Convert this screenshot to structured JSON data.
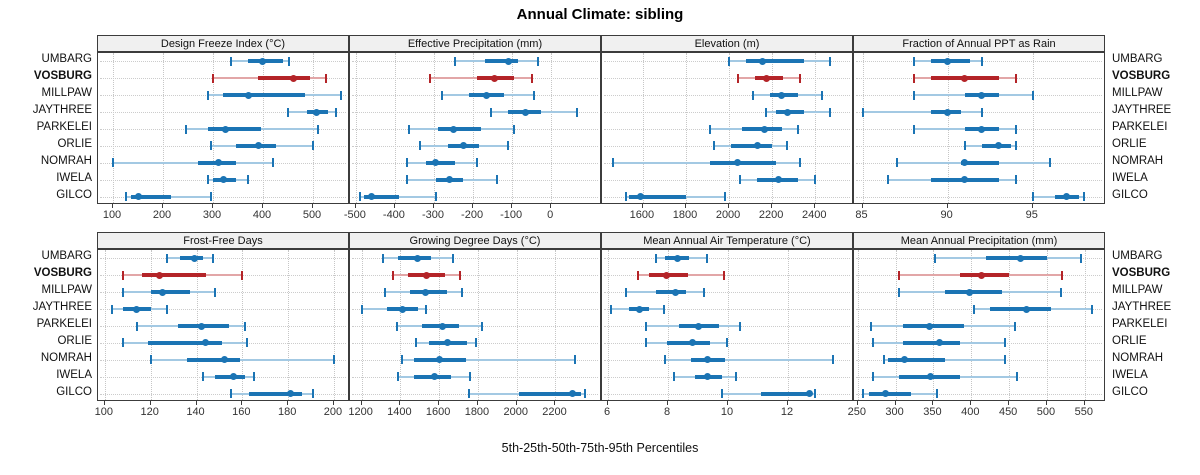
{
  "title": "Annual Climate: sibling",
  "caption": "5th-25th-50th-75th-95th Percentiles",
  "sites": [
    "UMBARG",
    "VOSBURG",
    "MILLPAW",
    "JAYTHREE",
    "PARKELEI",
    "ORLIE",
    "NOMRAH",
    "IWELA",
    "GILCO"
  ],
  "highlight_site": "VOSBURG",
  "percentile_labels": [
    "5th",
    "25th",
    "50th",
    "75th",
    "95th"
  ],
  "colors": {
    "blue": "#1b74b4",
    "blue_light": "#a3c9e3",
    "red": "#b42428",
    "red_light": "#e2a6a7",
    "grid": "#c6c6c6",
    "strip_bg": "#f0f0f0",
    "border": "#3c3c3c"
  },
  "chart_data": {
    "type": "dotplot-intervals",
    "layout": "2 rows x 4 cols",
    "legend_note": "each row shows 5th-25th-50th-75th-95th percentiles; VOSBURG highlighted red",
    "panels": [
      {
        "title": "Design Freeze Index (°C)",
        "xlim": [
          70,
          574
        ],
        "ticks": [
          100,
          200,
          300,
          400,
          500
        ],
        "values": {
          "UMBARG": [
            335,
            370,
            398,
            440,
            452
          ],
          "VOSBURG": [
            300,
            390,
            460,
            494,
            525
          ],
          "MILLPAW": [
            290,
            320,
            370,
            484,
            555
          ],
          "JAYTHREE": [
            450,
            487,
            507,
            530,
            545
          ],
          "PARKELEI": [
            245,
            290,
            325,
            395,
            510
          ],
          "ORLIE": [
            295,
            345,
            390,
            425,
            500
          ],
          "NOMRAH": [
            100,
            270,
            310,
            345,
            420
          ],
          "IWELA": [
            290,
            300,
            320,
            345,
            370
          ],
          "GILCO": [
            125,
            135,
            150,
            215,
            295
          ]
        }
      },
      {
        "title": "Effective Precipitation (mm)",
        "xlim": [
          -515,
          130
        ],
        "ticks": [
          -500,
          -400,
          -300,
          -200,
          -100,
          0
        ],
        "values": {
          "UMBARG": [
            -245,
            -170,
            -110,
            -85,
            -35
          ],
          "VOSBURG": [
            -310,
            -190,
            -145,
            -95,
            -50
          ],
          "MILLPAW": [
            -280,
            -210,
            -165,
            -120,
            -45
          ],
          "JAYTHREE": [
            -155,
            -110,
            -65,
            -25,
            65
          ],
          "PARKELEI": [
            -365,
            -290,
            -250,
            -180,
            -95
          ],
          "ORLIE": [
            -335,
            -265,
            -225,
            -185,
            -110
          ],
          "NOMRAH": [
            -370,
            -320,
            -295,
            -245,
            -190
          ],
          "IWELA": [
            -370,
            -295,
            -260,
            -225,
            -140
          ],
          "GILCO": [
            -490,
            -480,
            -460,
            -390,
            -295
          ]
        }
      },
      {
        "title": "Elevation (m)",
        "xlim": [
          1410,
          2580
        ],
        "ticks": [
          1600,
          1800,
          2000,
          2200,
          2400
        ],
        "values": {
          "UMBARG": [
            2000,
            2080,
            2155,
            2350,
            2470
          ],
          "VOSBURG": [
            2040,
            2120,
            2175,
            2250,
            2330
          ],
          "MILLPAW": [
            2110,
            2190,
            2245,
            2320,
            2430
          ],
          "JAYTHREE": [
            2170,
            2220,
            2270,
            2350,
            2470
          ],
          "PARKELEI": [
            1910,
            2060,
            2165,
            2245,
            2320
          ],
          "ORLIE": [
            1930,
            2010,
            2130,
            2200,
            2270
          ],
          "NOMRAH": [
            1460,
            1910,
            2040,
            2220,
            2330
          ],
          "IWELA": [
            2050,
            2130,
            2230,
            2320,
            2400
          ],
          "GILCO": [
            1520,
            1535,
            1590,
            1800,
            1980
          ]
        }
      },
      {
        "title": "Fraction of Annual PPT as Rain",
        "xlim": [
          84.5,
          99.3
        ],
        "ticks": [
          85,
          90,
          95
        ],
        "values": {
          "UMBARG": [
            88,
            89,
            90,
            91.3,
            92
          ],
          "VOSBURG": [
            88,
            89,
            91,
            93,
            94
          ],
          "MILLPAW": [
            88,
            91,
            92,
            93,
            95
          ],
          "JAYTHREE": [
            85,
            89,
            90,
            90.8,
            92
          ],
          "PARKELEI": [
            88,
            91,
            92,
            93,
            94
          ],
          "ORLIE": [
            91,
            92,
            93,
            93.7,
            94
          ],
          "NOMRAH": [
            87,
            90.8,
            91,
            93,
            96
          ],
          "IWELA": [
            86.5,
            89,
            91,
            93,
            94
          ],
          "GILCO": [
            95,
            96.3,
            97,
            97.7,
            98
          ]
        }
      },
      {
        "title": "Frost-Free Days",
        "xlim": [
          97,
          207
        ],
        "ticks": [
          100,
          120,
          140,
          160,
          180,
          200
        ],
        "values": {
          "UMBARG": [
            127,
            133,
            139,
            143,
            147
          ],
          "VOSBURG": [
            108,
            116,
            124,
            144,
            160
          ],
          "MILLPAW": [
            108,
            120,
            125,
            137,
            148
          ],
          "JAYTHREE": [
            103,
            108,
            114,
            120,
            127
          ],
          "PARKELEI": [
            114,
            132,
            142,
            154,
            161
          ],
          "ORLIE": [
            108,
            119,
            144,
            151,
            162
          ],
          "NOMRAH": [
            120,
            136,
            152,
            159,
            200
          ],
          "IWELA": [
            143,
            148,
            156,
            161,
            165
          ],
          "GILCO": [
            155,
            163,
            181,
            186,
            191
          ]
        }
      },
      {
        "title": "Growing Degree Days (°C)",
        "xlim": [
          1140,
          2440
        ],
        "ticks": [
          1200,
          1400,
          1600,
          1800,
          2000,
          2200
        ],
        "values": {
          "UMBARG": [
            1310,
            1390,
            1490,
            1560,
            1670
          ],
          "VOSBURG": [
            1360,
            1440,
            1535,
            1630,
            1710
          ],
          "MILLPAW": [
            1320,
            1450,
            1530,
            1640,
            1720
          ],
          "JAYTHREE": [
            1200,
            1330,
            1410,
            1490,
            1530
          ],
          "PARKELEI": [
            1380,
            1510,
            1615,
            1700,
            1820
          ],
          "ORLIE": [
            1480,
            1550,
            1645,
            1745,
            1790
          ],
          "NOMRAH": [
            1410,
            1470,
            1600,
            1740,
            2300
          ],
          "IWELA": [
            1390,
            1470,
            1575,
            1660,
            1760
          ],
          "GILCO": [
            1755,
            2010,
            2290,
            2330,
            2350
          ]
        }
      },
      {
        "title": "Mean Annual Air Temperature (°C)",
        "xlim": [
          5.8,
          14.2
        ],
        "ticks": [
          6,
          8,
          10,
          12
        ],
        "values": {
          "UMBARG": [
            7.6,
            7.9,
            8.3,
            8.7,
            9.3
          ],
          "VOSBURG": [
            7.0,
            7.35,
            7.95,
            8.65,
            9.85
          ],
          "MILLPAW": [
            6.6,
            7.6,
            8.25,
            8.6,
            9.2
          ],
          "JAYTHREE": [
            6.1,
            6.7,
            7.05,
            7.35,
            7.85
          ],
          "PARKELEI": [
            7.25,
            8.35,
            9.0,
            9.7,
            10.4
          ],
          "ORLIE": [
            7.25,
            7.95,
            8.8,
            9.4,
            9.95
          ],
          "NOMRAH": [
            7.9,
            8.75,
            9.3,
            9.9,
            13.5
          ],
          "IWELA": [
            8.2,
            8.9,
            9.3,
            9.8,
            10.25
          ],
          "GILCO": [
            9.8,
            11.1,
            12.7,
            12.8,
            12.9
          ]
        }
      },
      {
        "title": "Mean Annual Precipitation (mm)",
        "xlim": [
          245,
          578
        ],
        "ticks": [
          250,
          300,
          350,
          400,
          450,
          500,
          550
        ],
        "values": {
          "UMBARG": [
            352,
            420,
            465,
            500,
            545
          ],
          "VOSBURG": [
            305,
            385,
            413,
            450,
            520
          ],
          "MILLPAW": [
            305,
            365,
            398,
            440,
            518
          ],
          "JAYTHREE": [
            403,
            425,
            473,
            505,
            560
          ],
          "PARKELEI": [
            268,
            310,
            345,
            390,
            458
          ],
          "ORLIE": [
            270,
            310,
            358,
            385,
            445
          ],
          "NOMRAH": [
            285,
            290,
            312,
            365,
            445
          ],
          "IWELA": [
            270,
            305,
            346,
            385,
            460
          ],
          "GILCO": [
            257,
            265,
            286,
            320,
            355
          ]
        }
      }
    ]
  }
}
